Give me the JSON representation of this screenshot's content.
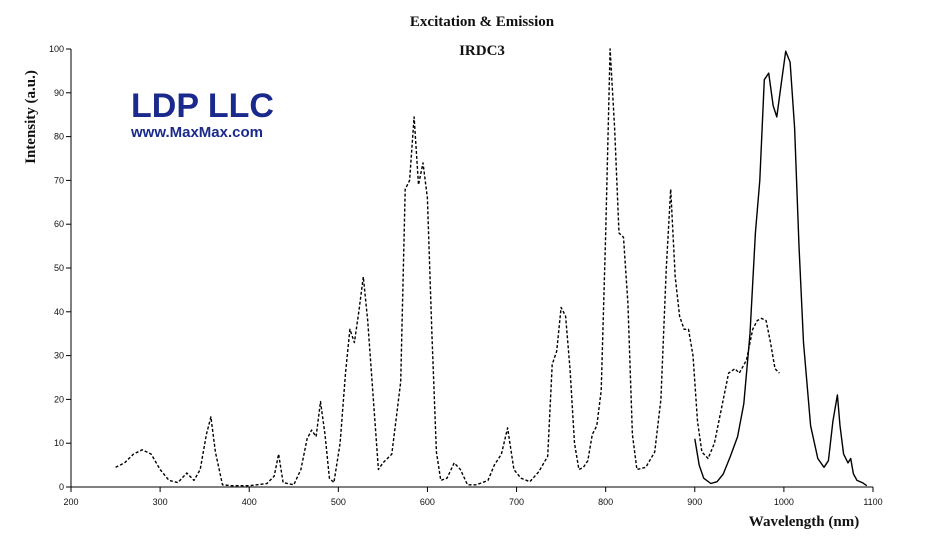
{
  "logo": {
    "name": "LDP LLC",
    "url": "www.MaxMax.com",
    "color": "#1a2a8c"
  },
  "chart_data": {
    "type": "line",
    "title": "Excitation & Emission",
    "subtitle": "IRDC3",
    "xlabel": "Wavelength (nm)",
    "ylabel": "Intensity (a.u.)",
    "xlim": [
      200,
      1100
    ],
    "ylim": [
      0,
      100
    ],
    "xticks": [
      200,
      300,
      400,
      500,
      600,
      700,
      800,
      900,
      1000,
      1100
    ],
    "yticks": [
      0,
      10,
      20,
      30,
      40,
      50,
      60,
      70,
      80,
      90,
      100
    ],
    "grid": false,
    "series": [
      {
        "style": "dashed",
        "color": "#000000",
        "points": [
          [
            250,
            4.5
          ],
          [
            260,
            5.5
          ],
          [
            270,
            7.5
          ],
          [
            280,
            8.5
          ],
          [
            290,
            7.5
          ],
          [
            300,
            4
          ],
          [
            310,
            1.5
          ],
          [
            320,
            1
          ],
          [
            330,
            3.2
          ],
          [
            338,
            1.5
          ],
          [
            345,
            4
          ],
          [
            352,
            12
          ],
          [
            357,
            16
          ],
          [
            362,
            8
          ],
          [
            370,
            0.5
          ],
          [
            380,
            0.3
          ],
          [
            400,
            0.3
          ],
          [
            420,
            0.8
          ],
          [
            428,
            2.5
          ],
          [
            433,
            7.5
          ],
          [
            438,
            1
          ],
          [
            450,
            0.5
          ],
          [
            458,
            4
          ],
          [
            465,
            11
          ],
          [
            470,
            13
          ],
          [
            475,
            11.5
          ],
          [
            480,
            19.5
          ],
          [
            485,
            12
          ],
          [
            490,
            2
          ],
          [
            495,
            1
          ],
          [
            502,
            10
          ],
          [
            508,
            26
          ],
          [
            513,
            36
          ],
          [
            518,
            33
          ],
          [
            523,
            40
          ],
          [
            528,
            48
          ],
          [
            533,
            38
          ],
          [
            540,
            18
          ],
          [
            545,
            4
          ],
          [
            550,
            5.5
          ],
          [
            560,
            7.5
          ],
          [
            570,
            24
          ],
          [
            575,
            68
          ],
          [
            580,
            70
          ],
          [
            585,
            84.5
          ],
          [
            590,
            69
          ],
          [
            595,
            74
          ],
          [
            600,
            66
          ],
          [
            605,
            35
          ],
          [
            610,
            8
          ],
          [
            615,
            1.5
          ],
          [
            622,
            2
          ],
          [
            630,
            5.5
          ],
          [
            637,
            4
          ],
          [
            645,
            0.5
          ],
          [
            655,
            0.5
          ],
          [
            668,
            1.5
          ],
          [
            675,
            5
          ],
          [
            683,
            7.5
          ],
          [
            690,
            13.5
          ],
          [
            697,
            4
          ],
          [
            705,
            2
          ],
          [
            715,
            1.2
          ],
          [
            725,
            3.5
          ],
          [
            735,
            7
          ],
          [
            740,
            28
          ],
          [
            745,
            31
          ],
          [
            750,
            41
          ],
          [
            755,
            39
          ],
          [
            760,
            27
          ],
          [
            765,
            10
          ],
          [
            770,
            4
          ],
          [
            775,
            4.5
          ],
          [
            780,
            6
          ],
          [
            785,
            12
          ],
          [
            790,
            14
          ],
          [
            795,
            22
          ],
          [
            800,
            58
          ],
          [
            805,
            100
          ],
          [
            810,
            82
          ],
          [
            815,
            58
          ],
          [
            820,
            57
          ],
          [
            825,
            42
          ],
          [
            830,
            12
          ],
          [
            835,
            4
          ],
          [
            845,
            4.5
          ],
          [
            855,
            8
          ],
          [
            862,
            20
          ],
          [
            868,
            50
          ],
          [
            873,
            68
          ],
          [
            878,
            48
          ],
          [
            883,
            39
          ],
          [
            888,
            36
          ],
          [
            893,
            36
          ],
          [
            898,
            30
          ],
          [
            903,
            15
          ],
          [
            908,
            8
          ],
          [
            915,
            6.5
          ],
          [
            922,
            10
          ],
          [
            930,
            18
          ],
          [
            938,
            26
          ],
          [
            945,
            27
          ],
          [
            950,
            26
          ],
          [
            958,
            29
          ],
          [
            965,
            36
          ],
          [
            970,
            38
          ],
          [
            975,
            38.5
          ],
          [
            980,
            38
          ],
          [
            985,
            33
          ],
          [
            990,
            27
          ],
          [
            995,
            26
          ]
        ]
      },
      {
        "style": "solid",
        "color": "#000000",
        "points": [
          [
            900,
            11
          ],
          [
            905,
            5
          ],
          [
            910,
            2
          ],
          [
            918,
            0.8
          ],
          [
            925,
            1.2
          ],
          [
            932,
            3
          ],
          [
            940,
            7
          ],
          [
            948,
            11.5
          ],
          [
            955,
            19
          ],
          [
            962,
            35
          ],
          [
            968,
            58
          ],
          [
            973,
            70
          ],
          [
            978,
            93
          ],
          [
            983,
            94.5
          ],
          [
            988,
            87
          ],
          [
            992,
            84.5
          ],
          [
            997,
            92
          ],
          [
            1002,
            99.5
          ],
          [
            1007,
            97
          ],
          [
            1012,
            82
          ],
          [
            1017,
            55
          ],
          [
            1022,
            33
          ],
          [
            1030,
            14
          ],
          [
            1038,
            6.5
          ],
          [
            1045,
            4.5
          ],
          [
            1050,
            6
          ],
          [
            1055,
            15
          ],
          [
            1060,
            21
          ],
          [
            1063,
            14
          ],
          [
            1067,
            7.5
          ],
          [
            1072,
            5.5
          ],
          [
            1075,
            6.5
          ],
          [
            1078,
            3
          ],
          [
            1082,
            1.5
          ],
          [
            1088,
            1
          ],
          [
            1093,
            0.3
          ]
        ]
      }
    ]
  }
}
